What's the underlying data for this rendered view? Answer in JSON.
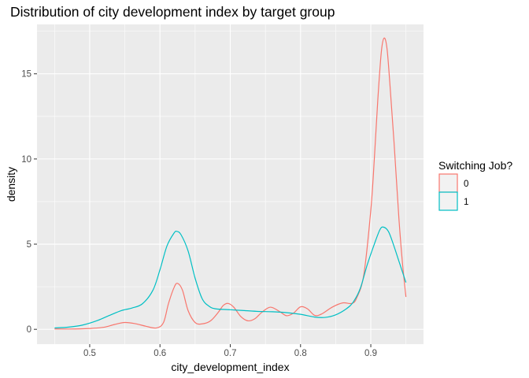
{
  "chart_data": {
    "type": "line",
    "subtype": "density",
    "title": "Distribution of city development index by target group",
    "xlabel": "city_development_index",
    "ylabel": "density",
    "xlim": [
      0.425,
      0.975
    ],
    "ylim": [
      -0.87,
      17.9
    ],
    "x_ticks": [
      0.5,
      0.6,
      0.7,
      0.8,
      0.9
    ],
    "x_tick_labels": [
      "0.5",
      "0.6",
      "0.7",
      "0.8",
      "0.9"
    ],
    "y_ticks": [
      0,
      5,
      10,
      15
    ],
    "y_tick_labels": [
      "0",
      "5",
      "10",
      "15"
    ],
    "grid": true,
    "legend": {
      "title": "Switching Job?",
      "placement": "right"
    },
    "series": [
      {
        "name": "0",
        "color": "#F8766D",
        "points": [
          [
            0.45,
            0.02
          ],
          [
            0.48,
            0.02
          ],
          [
            0.5,
            0.05
          ],
          [
            0.52,
            0.12
          ],
          [
            0.535,
            0.28
          ],
          [
            0.55,
            0.4
          ],
          [
            0.565,
            0.33
          ],
          [
            0.58,
            0.18
          ],
          [
            0.595,
            0.08
          ],
          [
            0.605,
            0.4
          ],
          [
            0.612,
            1.5
          ],
          [
            0.62,
            2.45
          ],
          [
            0.625,
            2.7
          ],
          [
            0.632,
            2.3
          ],
          [
            0.64,
            1.1
          ],
          [
            0.65,
            0.4
          ],
          [
            0.66,
            0.32
          ],
          [
            0.672,
            0.5
          ],
          [
            0.683,
            1.0
          ],
          [
            0.69,
            1.4
          ],
          [
            0.697,
            1.52
          ],
          [
            0.705,
            1.3
          ],
          [
            0.715,
            0.75
          ],
          [
            0.725,
            0.5
          ],
          [
            0.735,
            0.62
          ],
          [
            0.745,
            1.0
          ],
          [
            0.757,
            1.3
          ],
          [
            0.77,
            1.05
          ],
          [
            0.78,
            0.8
          ],
          [
            0.79,
            0.95
          ],
          [
            0.8,
            1.32
          ],
          [
            0.81,
            1.2
          ],
          [
            0.82,
            0.82
          ],
          [
            0.83,
            0.9
          ],
          [
            0.845,
            1.3
          ],
          [
            0.86,
            1.55
          ],
          [
            0.873,
            1.52
          ],
          [
            0.88,
            1.85
          ],
          [
            0.89,
            3.2
          ],
          [
            0.9,
            7.0
          ],
          [
            0.905,
            10.0
          ],
          [
            0.91,
            13.5
          ],
          [
            0.915,
            16.3
          ],
          [
            0.919,
            17.1
          ],
          [
            0.923,
            16.5
          ],
          [
            0.927,
            14.5
          ],
          [
            0.933,
            11.0
          ],
          [
            0.94,
            6.5
          ],
          [
            0.945,
            3.9
          ],
          [
            0.95,
            1.9
          ]
        ]
      },
      {
        "name": "1",
        "color": "#00BFC4",
        "points": [
          [
            0.45,
            0.08
          ],
          [
            0.47,
            0.13
          ],
          [
            0.49,
            0.25
          ],
          [
            0.51,
            0.5
          ],
          [
            0.53,
            0.85
          ],
          [
            0.545,
            1.1
          ],
          [
            0.56,
            1.25
          ],
          [
            0.575,
            1.5
          ],
          [
            0.59,
            2.3
          ],
          [
            0.6,
            3.5
          ],
          [
            0.61,
            4.9
          ],
          [
            0.62,
            5.65
          ],
          [
            0.624,
            5.75
          ],
          [
            0.63,
            5.55
          ],
          [
            0.64,
            4.6
          ],
          [
            0.65,
            3.0
          ],
          [
            0.66,
            1.8
          ],
          [
            0.67,
            1.35
          ],
          [
            0.68,
            1.2
          ],
          [
            0.7,
            1.15
          ],
          [
            0.72,
            1.1
          ],
          [
            0.74,
            1.05
          ],
          [
            0.76,
            1.03
          ],
          [
            0.78,
            0.98
          ],
          [
            0.8,
            0.88
          ],
          [
            0.82,
            0.72
          ],
          [
            0.835,
            0.7
          ],
          [
            0.85,
            0.85
          ],
          [
            0.865,
            1.2
          ],
          [
            0.875,
            1.6
          ],
          [
            0.885,
            2.4
          ],
          [
            0.895,
            3.8
          ],
          [
            0.905,
            5.0
          ],
          [
            0.913,
            5.85
          ],
          [
            0.918,
            6.0
          ],
          [
            0.925,
            5.75
          ],
          [
            0.932,
            5.0
          ],
          [
            0.94,
            4.0
          ],
          [
            0.95,
            2.75
          ]
        ]
      }
    ]
  }
}
